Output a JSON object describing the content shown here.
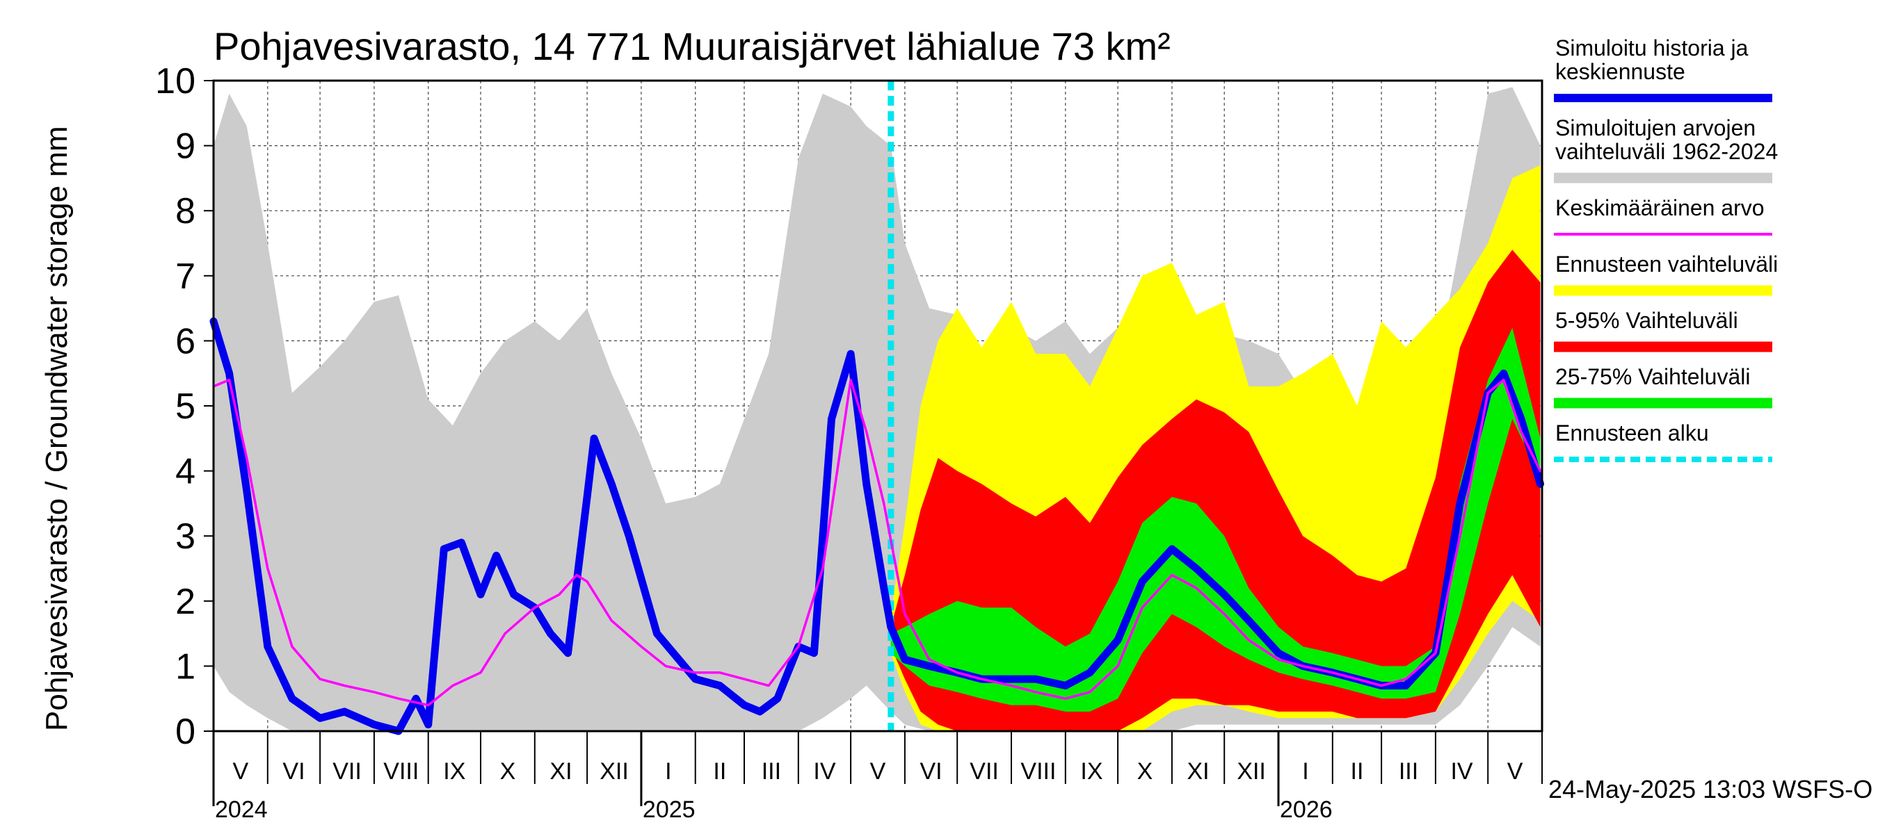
{
  "chart_data": {
    "type": "area",
    "title": "Pohjavesivarasto, 14 771 Muuraisjärvet lähialue 73 km²",
    "ylabel": "Pohjavesivarasto / Groundwater storage   mm",
    "ylim": [
      0,
      10
    ],
    "yticks": [
      "0",
      "1",
      "2",
      "3",
      "4",
      "5",
      "6",
      "7",
      "8",
      "9",
      "10"
    ],
    "grid": true,
    "legend_position": "right",
    "forecast_start": "2025-05-24",
    "months": [
      {
        "label": "V",
        "start": "2024-05-01"
      },
      {
        "label": "VI",
        "start": "2024-06-01"
      },
      {
        "label": "VII",
        "start": "2024-07-01"
      },
      {
        "label": "VIII",
        "start": "2024-08-01"
      },
      {
        "label": "IX",
        "start": "2024-09-01"
      },
      {
        "label": "X",
        "start": "2024-10-01"
      },
      {
        "label": "XI",
        "start": "2024-11-01"
      },
      {
        "label": "XII",
        "start": "2024-12-01"
      },
      {
        "label": "I",
        "start": "2025-01-01"
      },
      {
        "label": "II",
        "start": "2025-02-01"
      },
      {
        "label": "III",
        "start": "2025-03-01"
      },
      {
        "label": "IV",
        "start": "2025-04-01"
      },
      {
        "label": "V",
        "start": "2025-05-01"
      },
      {
        "label": "VI",
        "start": "2025-06-01"
      },
      {
        "label": "VII",
        "start": "2025-07-01"
      },
      {
        "label": "VIII",
        "start": "2025-08-01"
      },
      {
        "label": "IX",
        "start": "2025-09-01"
      },
      {
        "label": "X",
        "start": "2025-10-01"
      },
      {
        "label": "XI",
        "start": "2025-11-01"
      },
      {
        "label": "XII",
        "start": "2025-12-01"
      },
      {
        "label": "I",
        "start": "2026-01-01"
      },
      {
        "label": "II",
        "start": "2026-02-01"
      },
      {
        "label": "III",
        "start": "2026-03-01"
      },
      {
        "label": "IV",
        "start": "2026-04-01"
      },
      {
        "label": "V",
        "start": "2026-05-01"
      }
    ],
    "years": [
      {
        "label": "2024",
        "date": "2024-05-01"
      },
      {
        "label": "2025",
        "date": "2025-01-01"
      },
      {
        "label": "2026",
        "date": "2026-01-01"
      }
    ],
    "x_range": [
      "2024-05-01",
      "2026-05-31"
    ],
    "footer": "24-May-2025 13:03 WSFS-O",
    "legend": [
      {
        "label": "Simuloitu historia ja keskiennuste",
        "lines": [
          "Simuloitu historia ja",
          "keskiennuste"
        ],
        "color": "#0000ee",
        "style": "thick"
      },
      {
        "label": "Simuloitujen arvojen vaihteluväli 1962-2024",
        "lines": [
          "Simuloitujen arvojen",
          "vaihteluväli 1962-2024"
        ],
        "color": "#cccccc",
        "style": "band"
      },
      {
        "label": "Keskimääräinen arvo",
        "lines": [
          "Keskimääräinen arvo"
        ],
        "color": "#ff00ff",
        "style": "thin"
      },
      {
        "label": "Ennusteen vaihteluväli",
        "lines": [
          "Ennusteen vaihteluväli"
        ],
        "color": "#ffff00",
        "style": "band"
      },
      {
        "label": "5-95% Vaihteluväli",
        "lines": [
          "5-95% Vaihteluväli"
        ],
        "color": "#ff0000",
        "style": "band"
      },
      {
        "label": "25-75% Vaihteluväli",
        "lines": [
          "25-75% Vaihteluväli"
        ],
        "color": "#00ee00",
        "style": "band"
      },
      {
        "label": "Ennusteen alku",
        "lines": [
          "Ennusteen alku"
        ],
        "color": "#00e5ee",
        "style": "dashed"
      }
    ],
    "series": [
      {
        "name": "Simuloitujen arvojen vaihteluväli 1962-2024",
        "color": "#cccccc",
        "x": [
          "2024-05-01",
          "2024-05-10",
          "2024-05-20",
          "2024-06-01",
          "2024-06-15",
          "2024-07-01",
          "2024-07-15",
          "2024-08-01",
          "2024-08-15",
          "2024-09-01",
          "2024-09-15",
          "2024-10-01",
          "2024-10-15",
          "2024-11-01",
          "2024-11-15",
          "2024-12-01",
          "2024-12-15",
          "2025-01-01",
          "2025-01-15",
          "2025-02-01",
          "2025-02-15",
          "2025-03-01",
          "2025-03-15",
          "2025-04-01",
          "2025-04-15",
          "2025-05-01",
          "2025-05-10",
          "2025-05-24",
          "2025-06-01",
          "2025-06-15",
          "2025-07-01",
          "2025-07-15",
          "2025-08-01",
          "2025-08-15",
          "2025-09-01",
          "2025-09-15",
          "2025-10-01",
          "2025-10-15",
          "2025-11-01",
          "2025-11-15",
          "2025-12-01",
          "2025-12-15",
          "2026-01-01",
          "2026-01-15",
          "2026-02-01",
          "2026-02-15",
          "2026-03-01",
          "2026-03-15",
          "2026-04-01",
          "2026-04-15",
          "2026-05-01",
          "2026-05-15",
          "2026-05-31"
        ],
        "low": [
          1.0,
          0.6,
          0.4,
          0.2,
          0,
          0,
          0,
          0,
          0,
          0,
          0,
          0,
          0,
          0,
          0,
          0,
          0,
          0,
          0,
          0,
          0,
          0,
          0,
          0,
          0.2,
          0.5,
          0.7,
          0.3,
          0.1,
          0,
          0,
          0,
          0,
          0,
          0,
          0,
          0,
          0,
          0,
          0.1,
          0.1,
          0.1,
          0.1,
          0.1,
          0.1,
          0.1,
          0.1,
          0.1,
          0.1,
          0.4,
          1.0,
          1.6,
          1.3
        ],
        "high": [
          9.0,
          9.8,
          9.3,
          7.5,
          5.2,
          5.6,
          6.0,
          6.6,
          6.7,
          5.1,
          4.7,
          5.5,
          6.0,
          6.3,
          6.0,
          6.5,
          5.5,
          4.5,
          3.5,
          3.6,
          3.8,
          4.8,
          5.8,
          8.8,
          9.8,
          9.6,
          9.3,
          9.0,
          7.5,
          6.5,
          6.4,
          5.8,
          6.2,
          6.0,
          6.3,
          5.8,
          6.2,
          6.4,
          7.0,
          5.9,
          6.1,
          6.0,
          5.8,
          5.2,
          4.6,
          4.0,
          3.9,
          4.2,
          5.5,
          7.5,
          9.8,
          9.9,
          9.0
        ]
      },
      {
        "name": "Ennusteen vaihteluväli",
        "color": "#ffff00",
        "x": [
          "2025-05-24",
          "2025-06-01",
          "2025-06-10",
          "2025-06-20",
          "2025-07-01",
          "2025-07-15",
          "2025-08-01",
          "2025-08-15",
          "2025-09-01",
          "2025-09-15",
          "2025-10-01",
          "2025-10-15",
          "2025-11-01",
          "2025-11-15",
          "2025-12-01",
          "2025-12-15",
          "2026-01-01",
          "2026-01-15",
          "2026-02-01",
          "2026-02-15",
          "2026-03-01",
          "2026-03-15",
          "2026-04-01",
          "2026-04-15",
          "2026-05-01",
          "2026-05-15",
          "2026-05-31"
        ],
        "low": [
          1.2,
          0.6,
          0.1,
          0,
          0,
          0,
          0,
          0,
          0,
          0,
          0,
          0,
          0.3,
          0.4,
          0.4,
          0.3,
          0.2,
          0.2,
          0.2,
          0.2,
          0.2,
          0.2,
          0.3,
          0.8,
          1.5,
          2.0,
          1.7
        ],
        "high": [
          1.8,
          3.2,
          5.0,
          6.0,
          6.5,
          5.9,
          6.6,
          5.8,
          5.8,
          5.3,
          6.2,
          7.0,
          7.2,
          6.4,
          6.6,
          5.3,
          5.3,
          5.5,
          5.8,
          5.0,
          6.3,
          5.9,
          6.4,
          6.8,
          7.5,
          8.5,
          8.7
        ]
      },
      {
        "name": "5-95% Vaihteluväli",
        "color": "#ff0000",
        "x": [
          "2025-05-24",
          "2025-06-01",
          "2025-06-10",
          "2025-06-20",
          "2025-07-01",
          "2025-07-15",
          "2025-08-01",
          "2025-08-15",
          "2025-09-01",
          "2025-09-15",
          "2025-10-01",
          "2025-10-15",
          "2025-11-01",
          "2025-11-15",
          "2025-12-01",
          "2025-12-15",
          "2026-01-01",
          "2026-01-15",
          "2026-02-01",
          "2026-02-15",
          "2026-03-01",
          "2026-03-15",
          "2026-04-01",
          "2026-04-15",
          "2026-05-01",
          "2026-05-15",
          "2026-05-31"
        ],
        "low": [
          1.3,
          0.8,
          0.3,
          0.1,
          0,
          0,
          0,
          0,
          0,
          0,
          0,
          0.2,
          0.5,
          0.5,
          0.4,
          0.4,
          0.3,
          0.3,
          0.3,
          0.2,
          0.2,
          0.2,
          0.3,
          1.0,
          1.8,
          2.4,
          1.6
        ],
        "high": [
          1.6,
          2.4,
          3.4,
          4.2,
          4.0,
          3.8,
          3.5,
          3.3,
          3.6,
          3.2,
          3.9,
          4.4,
          4.8,
          5.1,
          4.9,
          4.6,
          3.7,
          3.0,
          2.7,
          2.4,
          2.3,
          2.5,
          3.9,
          5.9,
          6.9,
          7.4,
          6.9
        ]
      },
      {
        "name": "25-75% Vaihteluväli",
        "color": "#00ee00",
        "x": [
          "2025-05-24",
          "2025-06-01",
          "2025-06-15",
          "2025-07-01",
          "2025-07-15",
          "2025-08-01",
          "2025-08-15",
          "2025-09-01",
          "2025-09-15",
          "2025-10-01",
          "2025-10-15",
          "2025-11-01",
          "2025-11-15",
          "2025-12-01",
          "2025-12-15",
          "2026-01-01",
          "2026-01-15",
          "2026-02-01",
          "2026-02-15",
          "2026-03-01",
          "2026-03-15",
          "2026-04-01",
          "2026-04-15",
          "2026-05-01",
          "2026-05-15",
          "2026-05-31"
        ],
        "low": [
          1.2,
          1.0,
          0.7,
          0.6,
          0.5,
          0.4,
          0.4,
          0.3,
          0.3,
          0.5,
          1.2,
          1.8,
          1.6,
          1.3,
          1.1,
          0.9,
          0.8,
          0.7,
          0.6,
          0.5,
          0.5,
          0.6,
          1.8,
          3.5,
          4.8,
          3.9
        ],
        "high": [
          1.5,
          1.6,
          1.8,
          2.0,
          1.9,
          1.9,
          1.6,
          1.3,
          1.5,
          2.3,
          3.2,
          3.6,
          3.5,
          3.0,
          2.2,
          1.6,
          1.3,
          1.2,
          1.1,
          1.0,
          1.0,
          1.3,
          3.8,
          5.4,
          6.2,
          4.5
        ]
      },
      {
        "name": "Simuloitu historia ja keskiennuste",
        "color": "#0000ee",
        "x": [
          "2024-05-01",
          "2024-05-10",
          "2024-05-20",
          "2024-06-01",
          "2024-06-15",
          "2024-07-01",
          "2024-07-15",
          "2024-08-01",
          "2024-08-15",
          "2024-08-25",
          "2024-09-01",
          "2024-09-10",
          "2024-09-20",
          "2024-10-01",
          "2024-10-10",
          "2024-10-20",
          "2024-11-01",
          "2024-11-10",
          "2024-11-20",
          "2024-12-01",
          "2024-12-05",
          "2024-12-15",
          "2024-12-25",
          "2025-01-10",
          "2025-02-01",
          "2025-02-15",
          "2025-03-01",
          "2025-03-10",
          "2025-03-20",
          "2025-04-01",
          "2025-04-10",
          "2025-04-20",
          "2025-05-01",
          "2025-05-10",
          "2025-05-20",
          "2025-05-24",
          "2025-06-01",
          "2025-06-15",
          "2025-07-01",
          "2025-07-15",
          "2025-08-01",
          "2025-08-15",
          "2025-09-01",
          "2025-09-15",
          "2025-10-01",
          "2025-10-15",
          "2025-11-01",
          "2025-11-15",
          "2025-12-01",
          "2025-12-15",
          "2026-01-01",
          "2026-01-15",
          "2026-02-01",
          "2026-02-15",
          "2026-03-01",
          "2026-03-15",
          "2026-04-01",
          "2026-04-15",
          "2026-05-01",
          "2026-05-10",
          "2026-05-20",
          "2026-05-31"
        ],
        "values": [
          6.3,
          5.5,
          3.7,
          1.3,
          0.5,
          0.2,
          0.3,
          0.1,
          0,
          0.5,
          0.1,
          2.8,
          2.9,
          2.1,
          2.7,
          2.1,
          1.9,
          1.5,
          1.2,
          3.6,
          4.5,
          3.8,
          3.0,
          1.5,
          0.8,
          0.7,
          0.4,
          0.3,
          0.5,
          1.3,
          1.2,
          4.8,
          5.8,
          3.8,
          2.2,
          1.6,
          1.1,
          1.0,
          0.9,
          0.8,
          0.8,
          0.8,
          0.7,
          0.9,
          1.4,
          2.3,
          2.8,
          2.5,
          2.1,
          1.7,
          1.2,
          1.0,
          0.9,
          0.8,
          0.7,
          0.7,
          1.2,
          3.5,
          5.2,
          5.5,
          4.8,
          3.8
        ]
      },
      {
        "name": "Keskimääräinen arvo",
        "color": "#ff00ff",
        "x": [
          "2024-05-01",
          "2024-05-10",
          "2024-05-20",
          "2024-06-01",
          "2024-06-15",
          "2024-07-01",
          "2024-07-15",
          "2024-08-01",
          "2024-08-15",
          "2024-09-01",
          "2024-09-15",
          "2024-10-01",
          "2024-10-15",
          "2024-11-01",
          "2024-11-15",
          "2024-11-25",
          "2024-12-01",
          "2024-12-15",
          "2025-01-01",
          "2025-01-15",
          "2025-02-01",
          "2025-02-15",
          "2025-03-01",
          "2025-03-15",
          "2025-04-01",
          "2025-04-15",
          "2025-05-01",
          "2025-05-10",
          "2025-05-20",
          "2025-06-01",
          "2025-06-15",
          "2025-07-01",
          "2025-07-15",
          "2025-08-01",
          "2025-08-15",
          "2025-09-01",
          "2025-09-15",
          "2025-10-01",
          "2025-10-15",
          "2025-11-01",
          "2025-11-15",
          "2025-12-01",
          "2025-12-15",
          "2026-01-01",
          "2026-01-15",
          "2026-02-01",
          "2026-02-15",
          "2026-03-01",
          "2026-03-15",
          "2026-04-01",
          "2026-04-15",
          "2026-05-01",
          "2026-05-10",
          "2026-05-20",
          "2026-05-31"
        ],
        "values": [
          5.3,
          5.4,
          4.2,
          2.5,
          1.3,
          0.8,
          0.7,
          0.6,
          0.5,
          0.4,
          0.7,
          0.9,
          1.5,
          1.9,
          2.1,
          2.4,
          2.3,
          1.7,
          1.3,
          1.0,
          0.9,
          0.9,
          0.8,
          0.7,
          1.3,
          2.5,
          5.4,
          4.6,
          3.5,
          1.8,
          1.1,
          0.9,
          0.8,
          0.7,
          0.6,
          0.5,
          0.6,
          1.0,
          1.9,
          2.4,
          2.2,
          1.8,
          1.4,
          1.1,
          1.0,
          0.9,
          0.8,
          0.7,
          0.8,
          1.2,
          3.0,
          5.2,
          5.4,
          4.6,
          4.0
        ]
      }
    ]
  }
}
